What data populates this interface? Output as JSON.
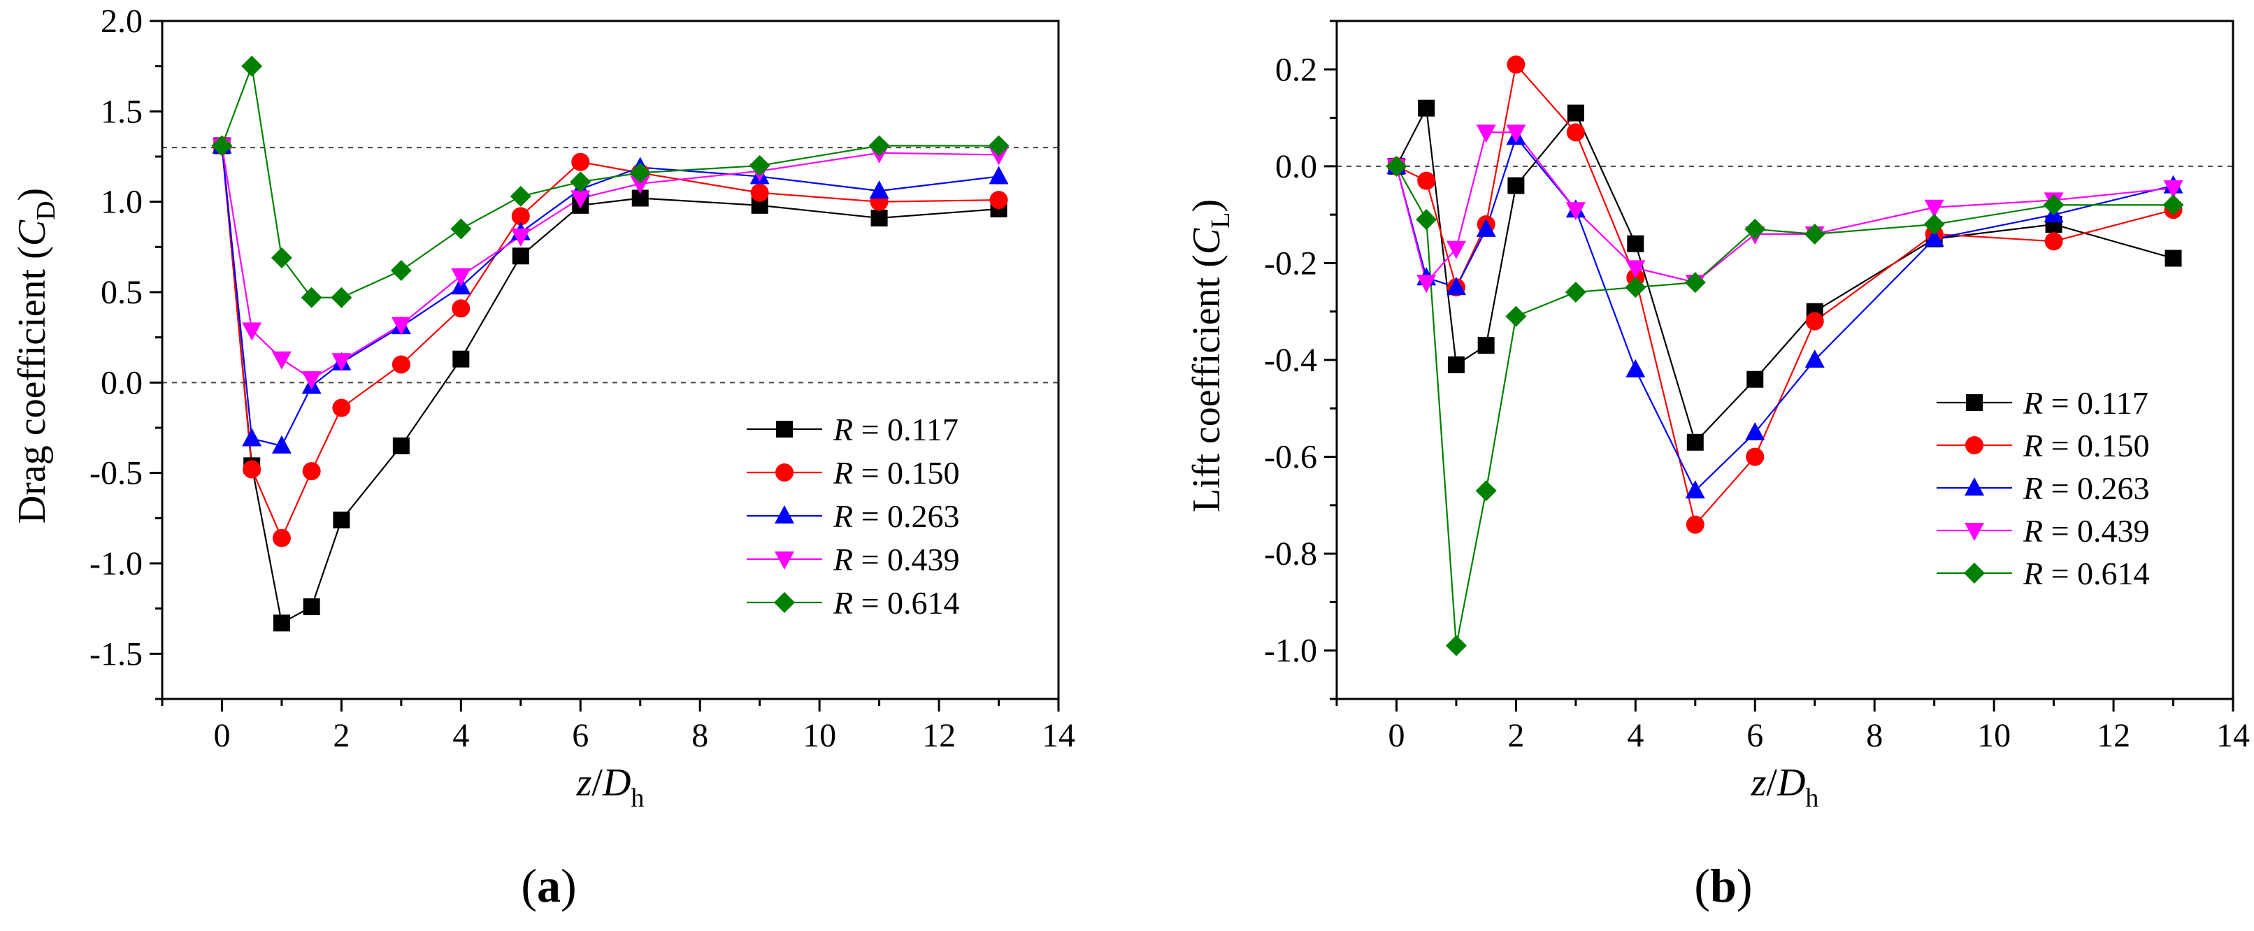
{
  "figure": {
    "panels": [
      {
        "label_open": "(",
        "label_letter": "a",
        "label_close": ")"
      },
      {
        "label_open": "(",
        "label_letter": "b",
        "label_close": ")"
      }
    ]
  },
  "chart_data": [
    {
      "type": "line",
      "title": "",
      "xlabel": {
        "main": "z",
        "slash": "/",
        "var": "D",
        "sub": "h"
      },
      "ylabel": {
        "main": "Drag coefficient (",
        "var": "C",
        "sub": "D",
        "close": ")"
      },
      "xlim": [
        -1,
        14
      ],
      "ylim": [
        -1.75,
        2.0
      ],
      "xticks": [
        0,
        2,
        4,
        6,
        8,
        10,
        12,
        14
      ],
      "xtick_labels": [
        "0",
        "2",
        "4",
        "6",
        "8",
        "10",
        "12",
        "14"
      ],
      "yticks": [
        -1.5,
        -1.0,
        -0.5,
        0.0,
        0.5,
        1.0,
        1.5,
        2.0
      ],
      "ytick_labels": [
        "-1.5",
        "-1.0",
        "-0.5",
        "0.0",
        "0.5",
        "1.0",
        "1.5",
        "2.0"
      ],
      "reference_lines": [
        1.3,
        0.0
      ],
      "legend_position": "lower-right",
      "x": [
        0,
        0.5,
        1,
        1.5,
        2,
        3,
        4,
        5,
        6,
        7,
        9,
        11,
        13
      ],
      "series": [
        {
          "name": "R = 0.117",
          "var": "R",
          "eq": " = 0.117",
          "color": "#000000",
          "marker": "square",
          "values": [
            1.31,
            -0.46,
            -1.33,
            -1.24,
            -0.76,
            -0.35,
            0.13,
            0.7,
            0.98,
            1.02,
            0.98,
            0.91,
            0.96
          ]
        },
        {
          "name": "R = 0.150",
          "var": "R",
          "eq": " = 0.150",
          "color": "#ff0000",
          "marker": "circle",
          "values": [
            1.31,
            -0.48,
            -0.86,
            -0.49,
            -0.14,
            0.1,
            0.41,
            0.92,
            1.22,
            1.16,
            1.05,
            1.0,
            1.01
          ]
        },
        {
          "name": "R = 0.263",
          "var": "R",
          "eq": " = 0.263",
          "color": "#0000ff",
          "marker": "triangle-up",
          "values": [
            1.31,
            -0.31,
            -0.35,
            -0.02,
            0.11,
            0.31,
            0.53,
            0.83,
            1.07,
            1.19,
            1.14,
            1.06,
            1.14
          ]
        },
        {
          "name": "R = 0.439",
          "var": "R",
          "eq": " = 0.439",
          "color": "#ff00ff",
          "marker": "triangle-down",
          "values": [
            1.31,
            0.29,
            0.13,
            0.02,
            0.12,
            0.32,
            0.59,
            0.81,
            1.02,
            1.1,
            1.17,
            1.27,
            1.26
          ]
        },
        {
          "name": "R = 0.614",
          "var": "R",
          "eq": " = 0.614",
          "color": "#008000",
          "marker": "diamond",
          "values": [
            1.31,
            1.75,
            0.69,
            0.47,
            0.47,
            0.62,
            0.85,
            1.03,
            1.11,
            1.16,
            1.2,
            1.31,
            1.31
          ]
        }
      ]
    },
    {
      "type": "line",
      "title": "",
      "xlabel": {
        "main": "z",
        "slash": "/",
        "var": "D",
        "sub": "h"
      },
      "ylabel": {
        "main": "Lift coefficient (",
        "var": "C",
        "sub": "L",
        "close": ")"
      },
      "xlim": [
        -1,
        14
      ],
      "ylim": [
        -1.1,
        0.3
      ],
      "xticks": [
        0,
        2,
        4,
        6,
        8,
        10,
        12,
        14
      ],
      "xtick_labels": [
        "0",
        "2",
        "4",
        "6",
        "8",
        "10",
        "12",
        "14"
      ],
      "yticks": [
        -1.0,
        -0.8,
        -0.6,
        -0.4,
        -0.2,
        0.0,
        0.2
      ],
      "ytick_labels": [
        "-1.0",
        "-0.8",
        "-0.6",
        "-0.4",
        "-0.2",
        "0.0",
        "0.2"
      ],
      "reference_lines": [
        0.0
      ],
      "legend_position": "center-right",
      "x": [
        0,
        0.5,
        1,
        1.5,
        2,
        3,
        4,
        5,
        6,
        7,
        9,
        11,
        13
      ],
      "series": [
        {
          "name": "R = 0.117",
          "var": "R",
          "eq": " = 0.117",
          "color": "#000000",
          "marker": "square",
          "values": [
            0.0,
            0.12,
            -0.41,
            -0.37,
            -0.04,
            0.11,
            -0.16,
            -0.57,
            -0.44,
            -0.3,
            -0.15,
            -0.12,
            -0.19
          ]
        },
        {
          "name": "R = 0.150",
          "var": "R",
          "eq": " = 0.150",
          "color": "#ff0000",
          "marker": "circle",
          "values": [
            0.0,
            -0.03,
            -0.25,
            -0.12,
            0.21,
            0.07,
            -0.23,
            -0.74,
            -0.6,
            -0.32,
            -0.14,
            -0.155,
            -0.09
          ]
        },
        {
          "name": "R = 0.263",
          "var": "R",
          "eq": " = 0.263",
          "color": "#0000ff",
          "marker": "triangle-up",
          "values": [
            0.0,
            -0.23,
            -0.25,
            -0.13,
            0.06,
            -0.09,
            -0.42,
            -0.67,
            -0.55,
            -0.4,
            -0.15,
            -0.1,
            -0.04
          ]
        },
        {
          "name": "R = 0.439",
          "var": "R",
          "eq": " = 0.439",
          "color": "#ff00ff",
          "marker": "triangle-down",
          "values": [
            0.0,
            -0.24,
            -0.17,
            0.07,
            0.07,
            -0.09,
            -0.21,
            -0.24,
            -0.14,
            -0.14,
            -0.085,
            -0.07,
            -0.045
          ]
        },
        {
          "name": "R = 0.614",
          "var": "R",
          "eq": " = 0.614",
          "color": "#008000",
          "marker": "diamond",
          "values": [
            0.0,
            -0.11,
            -0.99,
            -0.67,
            -0.31,
            -0.26,
            -0.25,
            -0.24,
            -0.13,
            -0.14,
            -0.12,
            -0.08,
            -0.08
          ]
        }
      ]
    }
  ]
}
